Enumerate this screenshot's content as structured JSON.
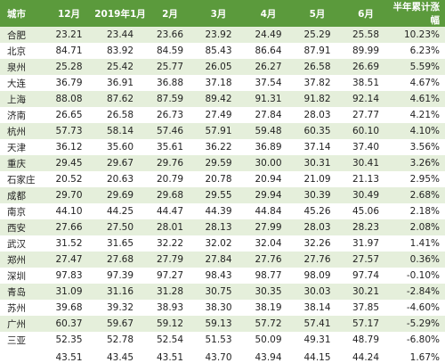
{
  "header": [
    "城市",
    "12月",
    "2019年1月",
    "2月",
    "3月",
    "4月",
    "5月",
    "6月",
    "半年累计涨幅"
  ],
  "rows": [
    [
      "合肥",
      "23.21",
      "23.44",
      "23.66",
      "23.92",
      "24.49",
      "25.29",
      "25.58",
      "10.23%"
    ],
    [
      "北京",
      "84.71",
      "83.92",
      "84.59",
      "85.43",
      "86.64",
      "87.91",
      "89.99",
      "6.23%"
    ],
    [
      "泉州",
      "25.28",
      "25.42",
      "25.77",
      "26.05",
      "26.27",
      "26.58",
      "26.69",
      "5.59%"
    ],
    [
      "大连",
      "36.79",
      "36.91",
      "36.88",
      "37.18",
      "37.54",
      "37.82",
      "38.51",
      "4.67%"
    ],
    [
      "上海",
      "88.08",
      "87.62",
      "87.59",
      "89.42",
      "91.31",
      "91.82",
      "92.14",
      "4.61%"
    ],
    [
      "济南",
      "26.65",
      "26.58",
      "26.73",
      "27.49",
      "27.84",
      "28.03",
      "27.77",
      "4.21%"
    ],
    [
      "杭州",
      "57.73",
      "58.14",
      "57.46",
      "57.91",
      "59.48",
      "60.35",
      "60.10",
      "4.10%"
    ],
    [
      "天津",
      "36.12",
      "35.60",
      "35.61",
      "36.22",
      "36.89",
      "37.14",
      "37.40",
      "3.56%"
    ],
    [
      "重庆",
      "29.45",
      "29.67",
      "29.76",
      "29.59",
      "30.00",
      "30.31",
      "30.41",
      "3.26%"
    ],
    [
      "石家庄",
      "20.52",
      "20.63",
      "20.79",
      "20.78",
      "20.94",
      "21.09",
      "21.13",
      "2.95%"
    ],
    [
      "成都",
      "29.70",
      "29.69",
      "29.68",
      "29.55",
      "29.94",
      "30.39",
      "30.49",
      "2.68%"
    ],
    [
      "南京",
      "44.10",
      "44.25",
      "44.47",
      "44.39",
      "44.84",
      "45.26",
      "45.06",
      "2.18%"
    ],
    [
      "西安",
      "27.66",
      "27.50",
      "28.01",
      "28.13",
      "27.99",
      "28.03",
      "28.23",
      "2.08%"
    ],
    [
      "武汉",
      "31.52",
      "31.65",
      "32.22",
      "32.02",
      "32.04",
      "32.26",
      "31.97",
      "1.41%"
    ],
    [
      "郑州",
      "27.47",
      "27.68",
      "27.79",
      "27.84",
      "27.76",
      "27.76",
      "27.57",
      "0.36%"
    ],
    [
      "深圳",
      "97.83",
      "97.39",
      "97.27",
      "98.43",
      "98.77",
      "98.09",
      "97.74",
      "-0.10%"
    ],
    [
      "青岛",
      "31.09",
      "31.16",
      "31.28",
      "30.75",
      "30.35",
      "30.03",
      "30.21",
      "-2.84%"
    ],
    [
      "苏州",
      "39.68",
      "39.32",
      "38.93",
      "38.30",
      "38.19",
      "38.14",
      "37.85",
      "-4.60%"
    ],
    [
      "广州",
      "60.37",
      "59.67",
      "59.12",
      "59.13",
      "57.72",
      "57.41",
      "57.17",
      "-5.29%"
    ],
    [
      "三亚",
      "52.35",
      "52.78",
      "52.54",
      "51.53",
      "50.09",
      "49.31",
      "48.79",
      "-6.80%"
    ]
  ],
  "footer": [
    "43.51",
    "43.45",
    "43.51",
    "43.70",
    "43.94",
    "44.15",
    "44.24",
    "1.67%"
  ]
}
